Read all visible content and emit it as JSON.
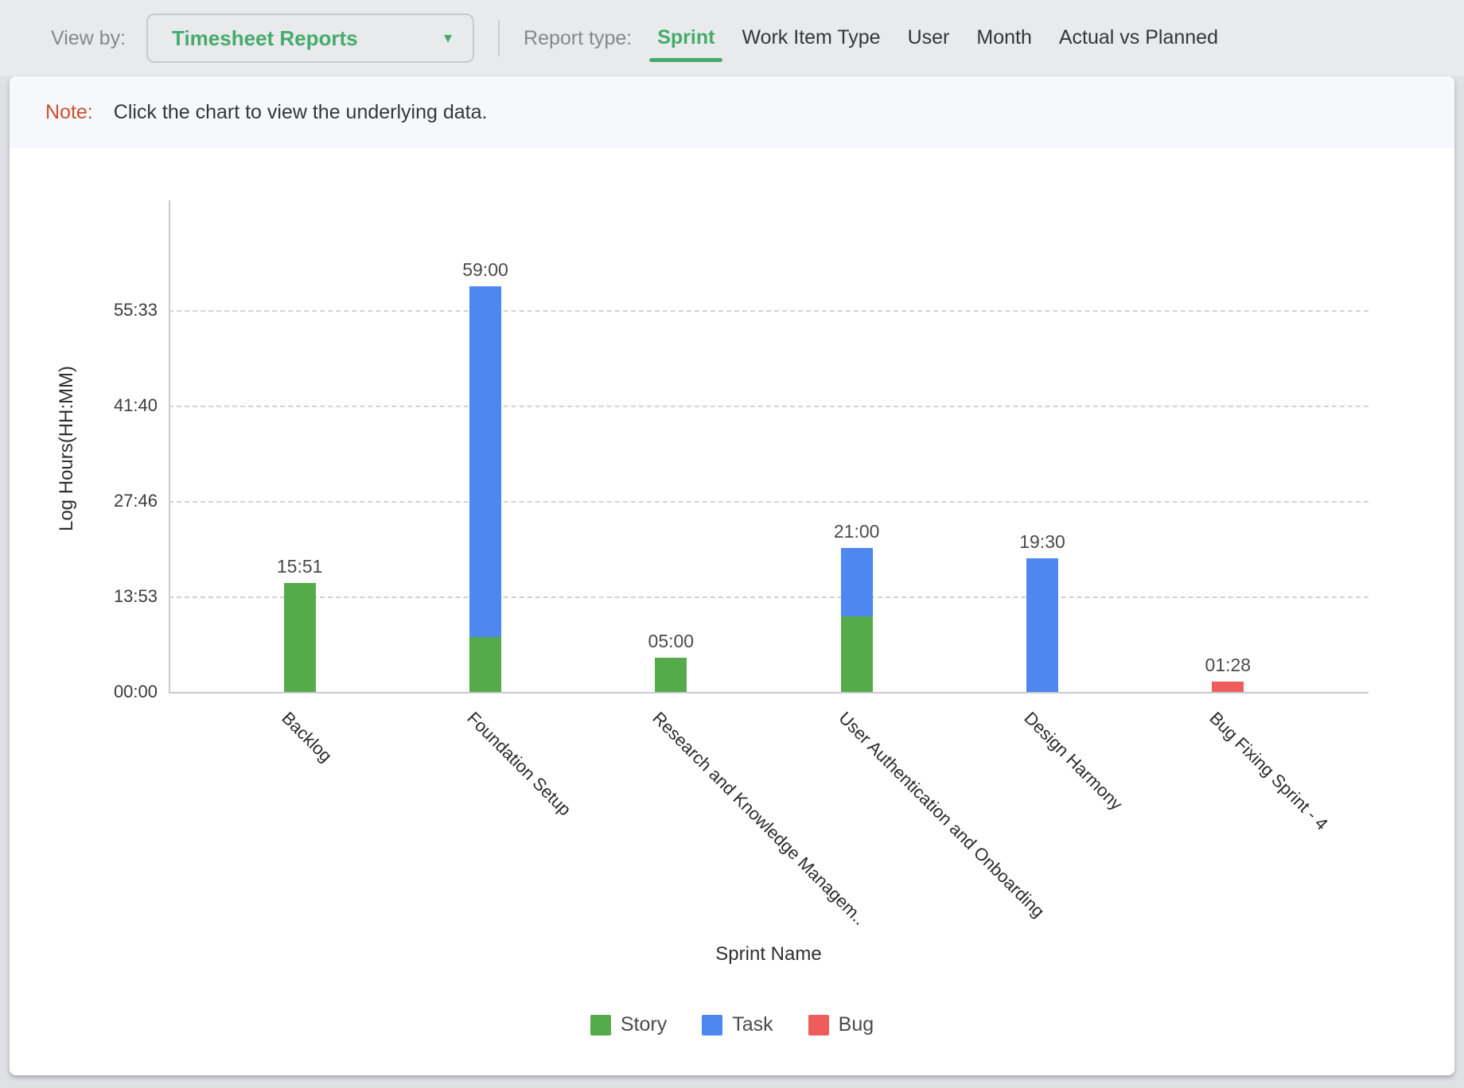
{
  "topbar": {
    "view_by_label": "View by:",
    "dropdown_value": "Timesheet Reports",
    "report_type_label": "Report type:",
    "tabs": [
      {
        "label": "Sprint",
        "active": true
      },
      {
        "label": "Work Item Type",
        "active": false
      },
      {
        "label": "User",
        "active": false
      },
      {
        "label": "Month",
        "active": false
      },
      {
        "label": "Actual vs Planned",
        "active": false
      }
    ],
    "accent_color": "#45ab6d"
  },
  "note": {
    "prefix": "Note:",
    "text": "Click the chart to view the underlying data.",
    "prefix_color": "#cc4f2c"
  },
  "chart_data": {
    "type": "bar",
    "stacked": true,
    "xlabel": "Sprint Name",
    "ylabel": "Log Hours(HH:MM)",
    "grid": "dashed-horizontal",
    "legend_position": "bottom",
    "yticks": [
      "00:00",
      "13:53",
      "27:46",
      "41:40",
      "55:33"
    ],
    "ylim_minutes": [
      0,
      3333
    ],
    "categories": [
      "Backlog",
      "Foundation Setup",
      "Research and Knowledge Managem..",
      "User Authentication and Onboarding",
      "Design Harmony",
      "Bug Fixing Sprint - 4"
    ],
    "series": [
      {
        "name": "Story",
        "color": "#55ab4a",
        "values": [
          "15:51",
          "08:00",
          "05:00",
          "11:00",
          "00:00",
          "00:00"
        ]
      },
      {
        "name": "Task",
        "color": "#4d87ef",
        "values": [
          "00:00",
          "51:00",
          "00:00",
          "10:00",
          "19:30",
          "00:00"
        ]
      },
      {
        "name": "Bug",
        "color": "#ee5c5c",
        "values": [
          "00:00",
          "00:00",
          "00:00",
          "00:00",
          "00:00",
          "01:28"
        ]
      }
    ],
    "totals": [
      "15:51",
      "59:00",
      "05:00",
      "21:00",
      "19:30",
      "01:28"
    ]
  }
}
